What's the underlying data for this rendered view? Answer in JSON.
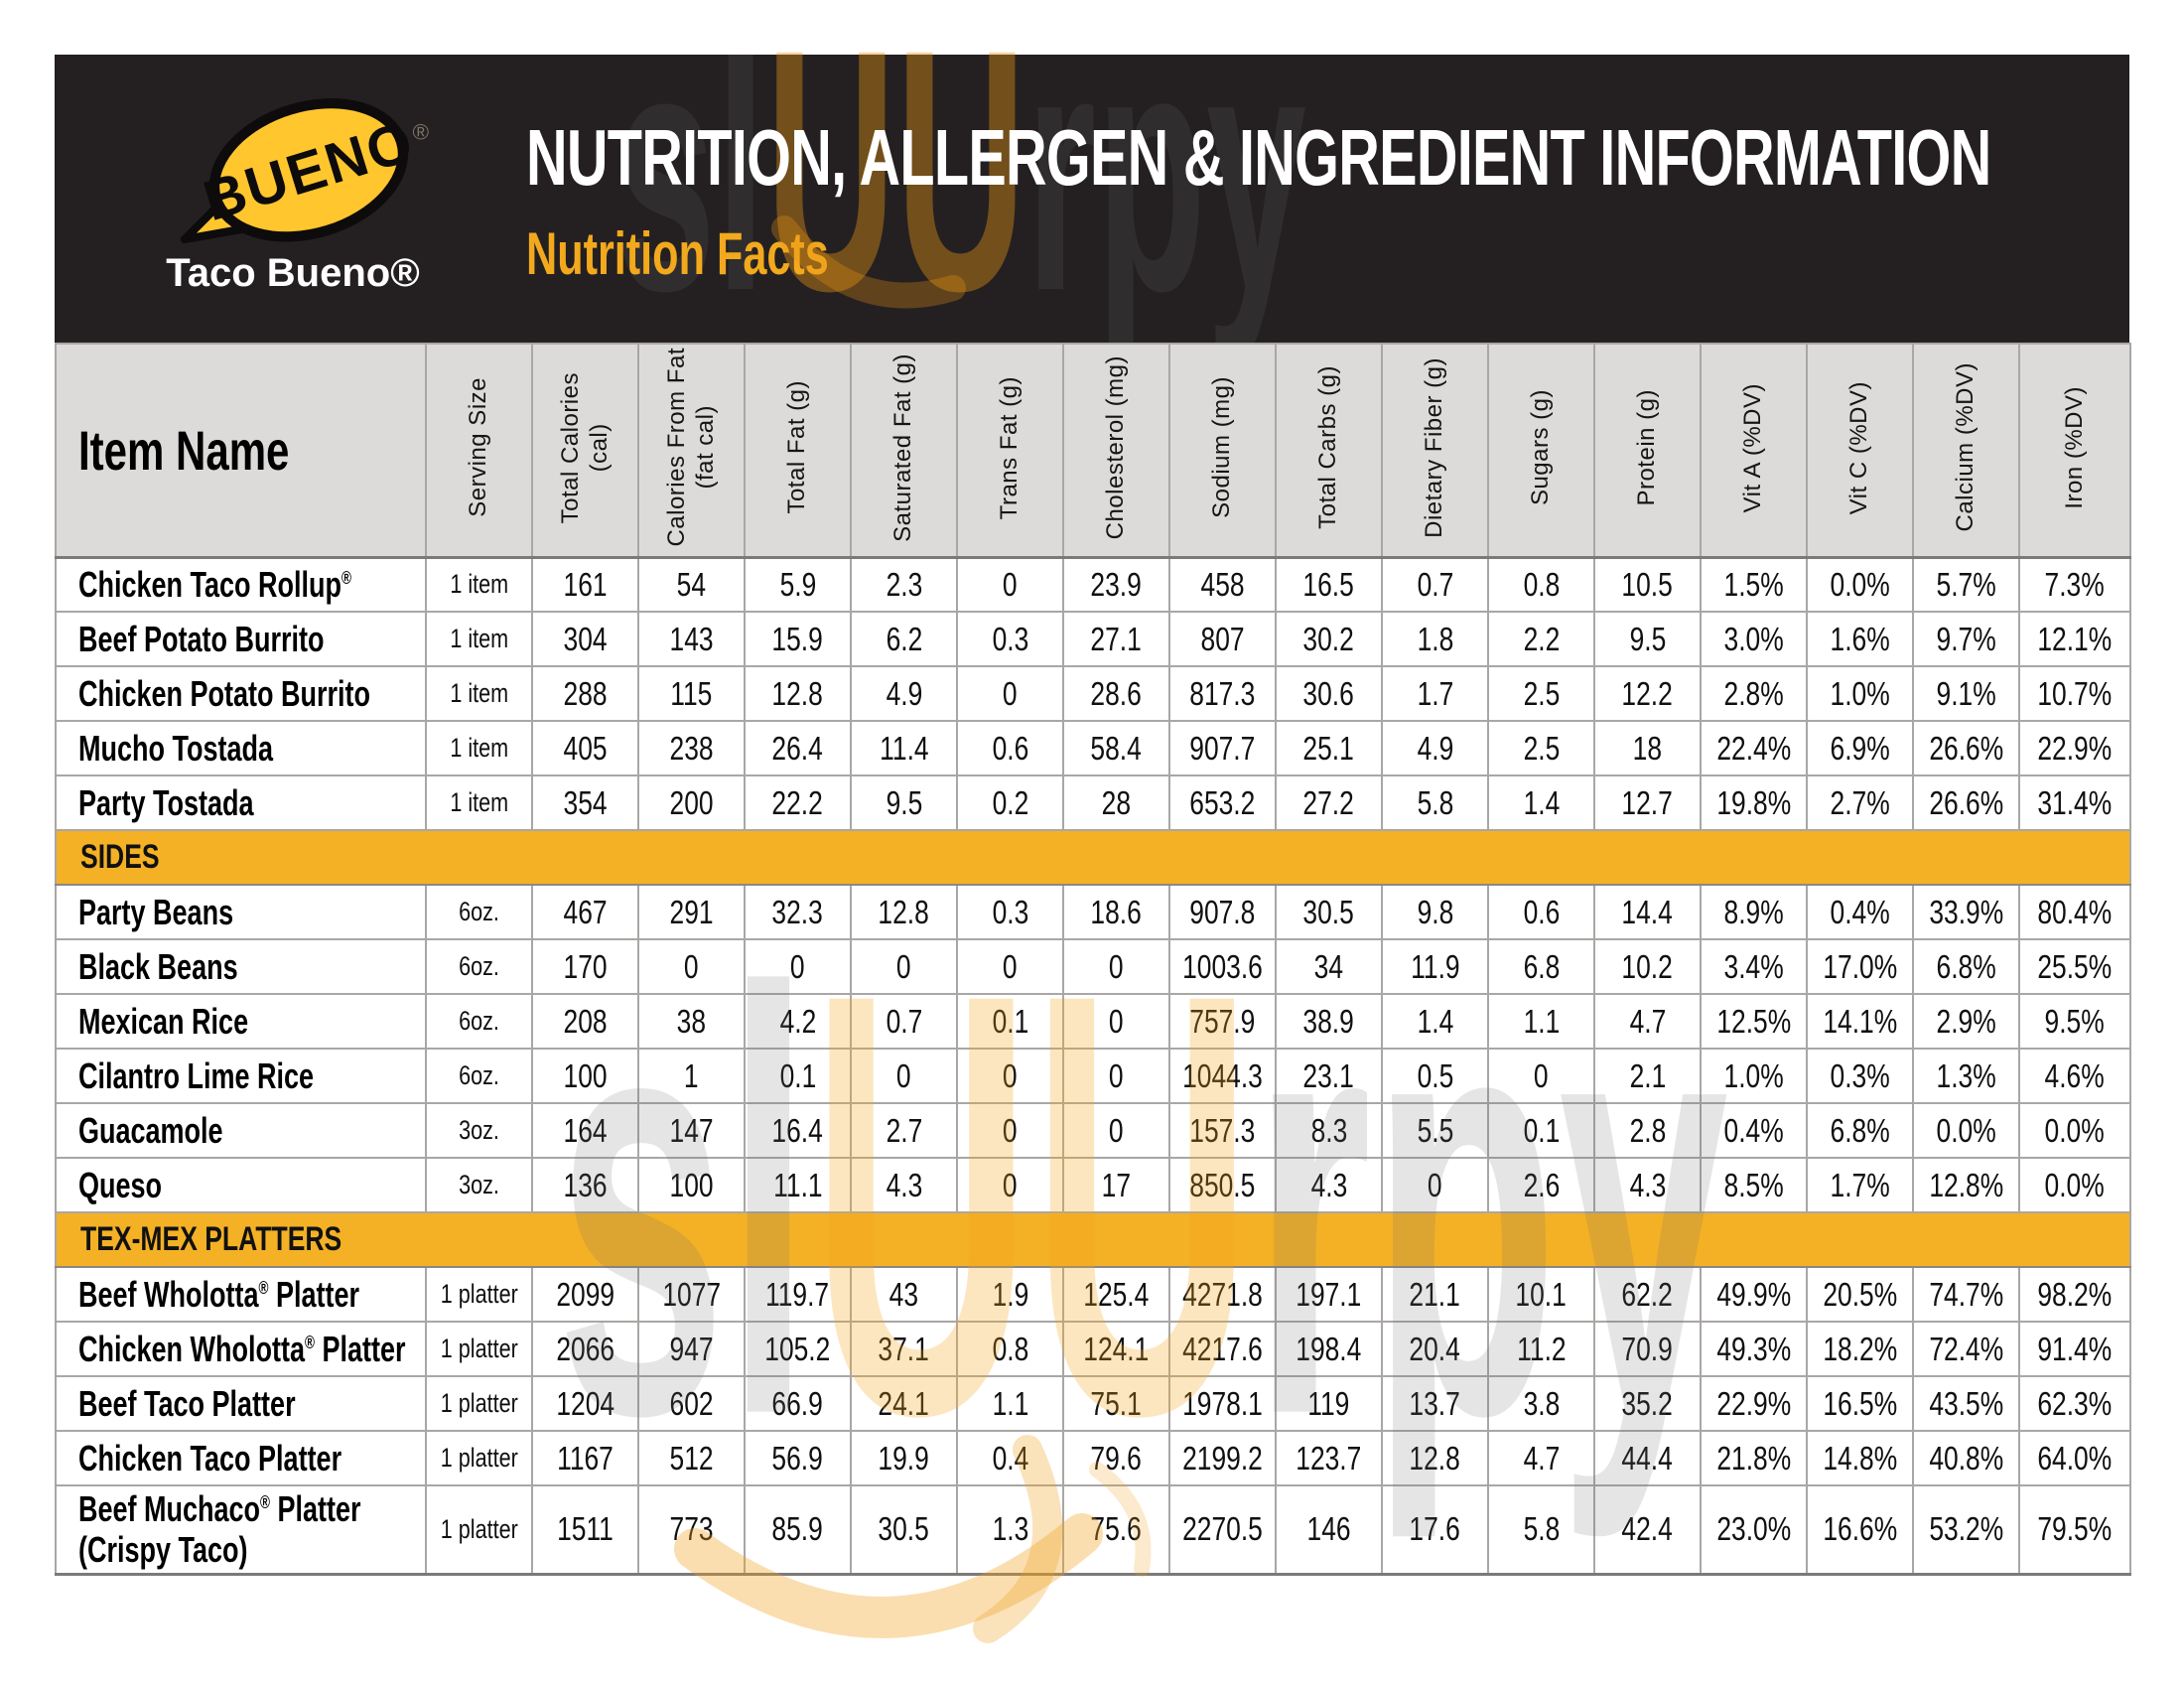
{
  "header": {
    "brand_logo_text": "BUENO",
    "brand_registered": "®",
    "brand_name": "Taco Bueno®",
    "title": "NUTRITION, ALLERGEN & INGREDIENT INFORMATION",
    "subtitle": "Nutrition Facts"
  },
  "colors": {
    "banner_black": "#242021",
    "accent_yellow": "#F4B125",
    "logo_yellow": "#FFC62E",
    "subtitle_yellow": "#F2A91D",
    "header_row_gray": "#DCDBD9",
    "border_gray": "#A9A7A5"
  },
  "watermark": {
    "text": "slUUrpy"
  },
  "table": {
    "item_header": "Item Name",
    "columns": [
      "Serving Size",
      "Total Calories\n(cal)",
      "Calories From Fat\n(fat cal)",
      "Total Fat (g)",
      "Saturated Fat (g)",
      "Trans Fat (g)",
      "Cholesterol (mg)",
      "Sodium (mg)",
      "Total Carbs (g)",
      "Dietary Fiber (g)",
      "Sugars (g)",
      "Protein (g)",
      "Vit A (%DV)",
      "Vit C (%DV)",
      "Calcium (%DV)",
      "Iron (%DV)"
    ],
    "sections": [
      {
        "title": null,
        "rows": [
          {
            "name": "Chicken Taco Rollup®",
            "values": [
              "1 item",
              "161",
              "54",
              "5.9",
              "2.3",
              "0",
              "23.9",
              "458",
              "16.5",
              "0.7",
              "0.8",
              "10.5",
              "1.5%",
              "0.0%",
              "5.7%",
              "7.3%"
            ]
          },
          {
            "name": "Beef Potato Burrito",
            "values": [
              "1 item",
              "304",
              "143",
              "15.9",
              "6.2",
              "0.3",
              "27.1",
              "807",
              "30.2",
              "1.8",
              "2.2",
              "9.5",
              "3.0%",
              "1.6%",
              "9.7%",
              "12.1%"
            ]
          },
          {
            "name": "Chicken Potato Burrito",
            "values": [
              "1 item",
              "288",
              "115",
              "12.8",
              "4.9",
              "0",
              "28.6",
              "817.3",
              "30.6",
              "1.7",
              "2.5",
              "12.2",
              "2.8%",
              "1.0%",
              "9.1%",
              "10.7%"
            ]
          },
          {
            "name": "Mucho Tostada",
            "values": [
              "1 item",
              "405",
              "238",
              "26.4",
              "11.4",
              "0.6",
              "58.4",
              "907.7",
              "25.1",
              "4.9",
              "2.5",
              "18",
              "22.4%",
              "6.9%",
              "26.6%",
              "22.9%"
            ]
          },
          {
            "name": "Party Tostada",
            "values": [
              "1 item",
              "354",
              "200",
              "22.2",
              "9.5",
              "0.2",
              "28",
              "653.2",
              "27.2",
              "5.8",
              "1.4",
              "12.7",
              "19.8%",
              "2.7%",
              "26.6%",
              "31.4%"
            ]
          }
        ]
      },
      {
        "title": "SIDES",
        "rows": [
          {
            "name": "Party Beans",
            "values": [
              "6oz.",
              "467",
              "291",
              "32.3",
              "12.8",
              "0.3",
              "18.6",
              "907.8",
              "30.5",
              "9.8",
              "0.6",
              "14.4",
              "8.9%",
              "0.4%",
              "33.9%",
              "80.4%"
            ]
          },
          {
            "name": "Black Beans",
            "values": [
              "6oz.",
              "170",
              "0",
              "0",
              "0",
              "0",
              "0",
              "1003.6",
              "34",
              "11.9",
              "6.8",
              "10.2",
              "3.4%",
              "17.0%",
              "6.8%",
              "25.5%"
            ]
          },
          {
            "name": "Mexican Rice",
            "values": [
              "6oz.",
              "208",
              "38",
              "4.2",
              "0.7",
              "0.1",
              "0",
              "757.9",
              "38.9",
              "1.4",
              "1.1",
              "4.7",
              "12.5%",
              "14.1%",
              "2.9%",
              "9.5%"
            ]
          },
          {
            "name": "Cilantro Lime Rice",
            "values": [
              "6oz.",
              "100",
              "1",
              "0.1",
              "0",
              "0",
              "0",
              "1044.3",
              "23.1",
              "0.5",
              "0",
              "2.1",
              "1.0%",
              "0.3%",
              "1.3%",
              "4.6%"
            ]
          },
          {
            "name": "Guacamole",
            "values": [
              "3oz.",
              "164",
              "147",
              "16.4",
              "2.7",
              "0",
              "0",
              "157.3",
              "8.3",
              "5.5",
              "0.1",
              "2.8",
              "0.4%",
              "6.8%",
              "0.0%",
              "0.0%"
            ]
          },
          {
            "name": "Queso",
            "values": [
              "3oz.",
              "136",
              "100",
              "11.1",
              "4.3",
              "0",
              "17",
              "850.5",
              "4.3",
              "0",
              "2.6",
              "4.3",
              "8.5%",
              "1.7%",
              "12.8%",
              "0.0%"
            ]
          }
        ]
      },
      {
        "title": "TEX-MEX PLATTERS",
        "rows": [
          {
            "name": "Beef Wholotta® Platter",
            "values": [
              "1 platter",
              "2099",
              "1077",
              "119.7",
              "43",
              "1.9",
              "125.4",
              "4271.8",
              "197.1",
              "21.1",
              "10.1",
              "62.2",
              "49.9%",
              "20.5%",
              "74.7%",
              "98.2%"
            ]
          },
          {
            "name": "Chicken Wholotta® Platter",
            "values": [
              "1 platter",
              "2066",
              "947",
              "105.2",
              "37.1",
              "0.8",
              "124.1",
              "4217.6",
              "198.4",
              "20.4",
              "11.2",
              "70.9",
              "49.3%",
              "18.2%",
              "72.4%",
              "91.4%"
            ]
          },
          {
            "name": "Beef Taco Platter",
            "values": [
              "1 platter",
              "1204",
              "602",
              "66.9",
              "24.1",
              "1.1",
              "75.1",
              "1978.1",
              "119",
              "13.7",
              "3.8",
              "35.2",
              "22.9%",
              "16.5%",
              "43.5%",
              "62.3%"
            ]
          },
          {
            "name": "Chicken Taco Platter",
            "values": [
              "1 platter",
              "1167",
              "512",
              "56.9",
              "19.9",
              "0.4",
              "79.6",
              "2199.2",
              "123.7",
              "12.8",
              "4.7",
              "44.4",
              "21.8%",
              "14.8%",
              "40.8%",
              "64.0%"
            ]
          },
          {
            "name": "Beef Muchaco® Platter (Crispy Taco)",
            "values": [
              "1 platter",
              "1511",
              "773",
              "85.9",
              "30.5",
              "1.3",
              "75.6",
              "2270.5",
              "146",
              "17.6",
              "5.8",
              "42.4",
              "23.0%",
              "16.6%",
              "53.2%",
              "79.5%"
            ]
          }
        ]
      }
    ]
  }
}
